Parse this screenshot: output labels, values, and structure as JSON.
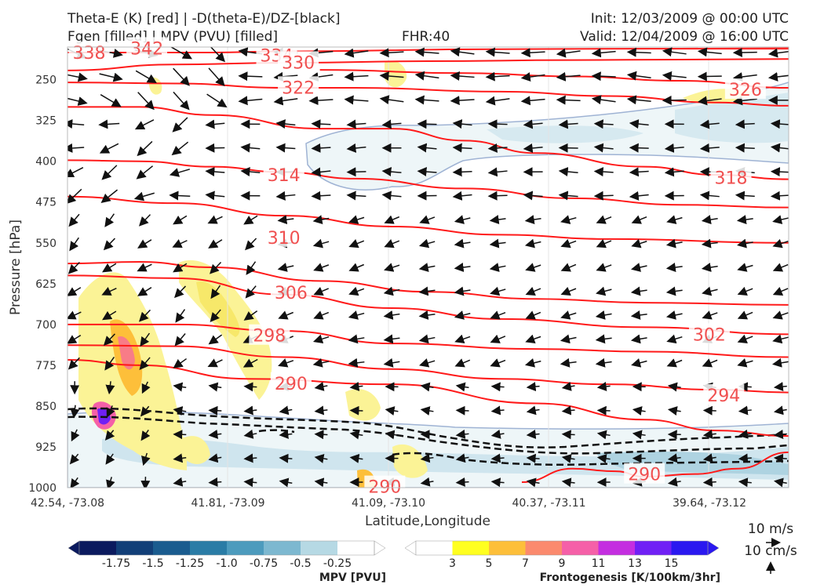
{
  "header": {
    "title_line1": "Theta-E (K) [red] | -D(theta-E)/DZ-[black]",
    "title_line2": "Fgen [filled] | MPV (PVU) [filled]",
    "fhr": "FHR:40",
    "init": "Init: 12/03/2009 @ 00:00 UTC",
    "valid": "Valid: 12/04/2009 @ 16:00 UTC"
  },
  "chart_data": {
    "type": "cross-section",
    "xlabel": "Latitude,Longitude",
    "ylabel": "Pressure [hPa]",
    "x_ticks": [
      "42.54, -73.08",
      "41.81, -73.09",
      "41.09, -73.10",
      "40.37, -73.11",
      "39.64, -73.12"
    ],
    "y_ticks": [
      250,
      325,
      400,
      475,
      550,
      625,
      700,
      775,
      850,
      925,
      1000
    ],
    "ylim": [
      1000,
      190
    ],
    "theta_e_contours": [
      {
        "value": 338,
        "label": "338",
        "points": [
          [
            0,
            185
          ],
          [
            0.2,
            186
          ],
          [
            0.5,
            188
          ],
          [
            0.8,
            189
          ],
          [
            1,
            190
          ]
        ]
      },
      {
        "value": 342,
        "label": "342",
        "points": []
      },
      {
        "value": 334,
        "label": "334",
        "points": [
          [
            0,
            200
          ],
          [
            0.2,
            200
          ],
          [
            0.3,
            198
          ],
          [
            0.6,
            194
          ],
          [
            0.8,
            193
          ],
          [
            1,
            193
          ]
        ]
      },
      {
        "value": 330,
        "label": "330",
        "points": [
          [
            0,
            233
          ],
          [
            0.15,
            222
          ],
          [
            0.3,
            219
          ],
          [
            0.5,
            216
          ],
          [
            0.7,
            214
          ],
          [
            0.85,
            213
          ],
          [
            1,
            212
          ]
        ]
      },
      {
        "value": 322,
        "label": "322",
        "points": [
          [
            0,
            255
          ],
          [
            0.15,
            257
          ],
          [
            0.3,
            265
          ],
          [
            0.4,
            265
          ],
          [
            0.6,
            272
          ],
          [
            0.75,
            280
          ],
          [
            0.9,
            292
          ],
          [
            1,
            298
          ]
        ]
      },
      {
        "value": 326,
        "label": "326",
        "points": [
          [
            0.35,
            232
          ],
          [
            0.55,
            238
          ],
          [
            0.7,
            244
          ],
          [
            0.85,
            252
          ],
          [
            1,
            265
          ]
        ]
      },
      {
        "value": 318,
        "label": "318",
        "points": [
          [
            0,
            300
          ],
          [
            0.1,
            300
          ],
          [
            0.2,
            315
          ],
          [
            0.35,
            340
          ],
          [
            0.45,
            340
          ],
          [
            0.55,
            362
          ],
          [
            0.65,
            385
          ],
          [
            0.8,
            410
          ],
          [
            0.9,
            425
          ],
          [
            1,
            433
          ]
        ]
      },
      {
        "value": 314,
        "label": "314",
        "points": [
          [
            0,
            398
          ],
          [
            0.1,
            400
          ],
          [
            0.2,
            410
          ],
          [
            0.3,
            420
          ],
          [
            0.4,
            432
          ],
          [
            0.55,
            450
          ],
          [
            0.7,
            468
          ],
          [
            0.85,
            480
          ],
          [
            1,
            485
          ]
        ]
      },
      {
        "value": 310,
        "label": "310",
        "points": [
          [
            0,
            465
          ],
          [
            0.15,
            477
          ],
          [
            0.3,
            500
          ],
          [
            0.45,
            520
          ],
          [
            0.6,
            535
          ],
          [
            0.75,
            543
          ],
          [
            1,
            550
          ]
        ]
      },
      {
        "value": 306,
        "label": "306",
        "points": [
          [
            0,
            588
          ],
          [
            0.1,
            585
          ],
          [
            0.2,
            595
          ],
          [
            0.35,
            620
          ],
          [
            0.5,
            640
          ],
          [
            0.65,
            653
          ],
          [
            0.8,
            660
          ],
          [
            1,
            664
          ]
        ]
      },
      {
        "value": 302,
        "label": "302",
        "points": [
          [
            0,
            610
          ],
          [
            0.15,
            615
          ],
          [
            0.3,
            645
          ],
          [
            0.45,
            670
          ],
          [
            0.6,
            690
          ],
          [
            0.8,
            705
          ],
          [
            1,
            718
          ]
        ]
      },
      {
        "value": 298,
        "label": "298",
        "points": [
          [
            0,
            700
          ],
          [
            0.15,
            700
          ],
          [
            0.3,
            712
          ],
          [
            0.45,
            735
          ],
          [
            0.65,
            745
          ],
          [
            0.8,
            750
          ],
          [
            1,
            760
          ]
        ]
      },
      {
        "value": 294,
        "label": "294",
        "points": [
          [
            0,
            738
          ],
          [
            0.15,
            740
          ],
          [
            0.3,
            760
          ],
          [
            0.45,
            782
          ],
          [
            0.6,
            800
          ],
          [
            0.75,
            810
          ],
          [
            0.9,
            820
          ],
          [
            1,
            825
          ]
        ]
      },
      {
        "value": 290,
        "label": "290",
        "points": [
          [
            0,
            765
          ],
          [
            0.1,
            775
          ],
          [
            0.25,
            800
          ],
          [
            0.45,
            810
          ],
          [
            0.65,
            845
          ],
          [
            0.8,
            875
          ],
          [
            0.9,
            895
          ],
          [
            1,
            905
          ]
        ]
      },
      {
        "value": 290,
        "label": "290",
        "points": [
          [
            0.63,
            990
          ],
          [
            0.7,
            965
          ],
          [
            0.76,
            970
          ],
          [
            0.8,
            980
          ],
          [
            0.87,
            975
          ],
          [
            0.93,
            965
          ],
          [
            1,
            935
          ]
        ]
      },
      {
        "value": 290,
        "label": "290",
        "points": []
      }
    ],
    "theta_e_labels": [
      {
        "text": "338",
        "x": 0.03,
        "p": 200
      },
      {
        "text": "342",
        "x": 0.11,
        "p": 192
      },
      {
        "text": "334",
        "x": 0.29,
        "p": 205
      },
      {
        "text": "330",
        "x": 0.32,
        "p": 218
      },
      {
        "text": "322",
        "x": 0.32,
        "p": 264
      },
      {
        "text": "326",
        "x": 0.94,
        "p": 268
      },
      {
        "text": "318",
        "x": 0.92,
        "p": 430
      },
      {
        "text": "314",
        "x": 0.3,
        "p": 425
      },
      {
        "text": "310",
        "x": 0.3,
        "p": 540
      },
      {
        "text": "306",
        "x": 0.31,
        "p": 641
      },
      {
        "text": "302",
        "x": 0.89,
        "p": 718
      },
      {
        "text": "298",
        "x": 0.28,
        "p": 720
      },
      {
        "text": "294",
        "x": 0.91,
        "p": 830
      },
      {
        "text": "290",
        "x": 0.31,
        "p": 808
      },
      {
        "text": "290",
        "x": 0.8,
        "p": 975
      },
      {
        "text": "290",
        "x": 0.44,
        "p": 998
      }
    ],
    "mpv_legend": {
      "title": "MPV [PVU]",
      "labels": [
        "-1.75",
        "-1.5",
        "-1.25",
        "-1.0",
        "-0.75",
        "-0.5",
        "-0.25"
      ],
      "colors": [
        "#0b1a5e",
        "#123f78",
        "#1a5c8f",
        "#2a7ca6",
        "#4d9bbd",
        "#7db8d0",
        "#b6d9e4",
        "#ffffff"
      ]
    },
    "fgen_legend": {
      "title": "Frontogenesis [K/100km/3hr]",
      "labels": [
        "3",
        "5",
        "7",
        "9",
        "11",
        "13",
        "15"
      ],
      "colors": [
        "#ffffff",
        "#ffff20",
        "#fdbf3a",
        "#fb8a6e",
        "#f560a8",
        "#c42ee0",
        "#7020f5",
        "#2a18f0"
      ]
    },
    "reference_vectors": [
      "10 m/s",
      "10 cm/s"
    ]
  }
}
